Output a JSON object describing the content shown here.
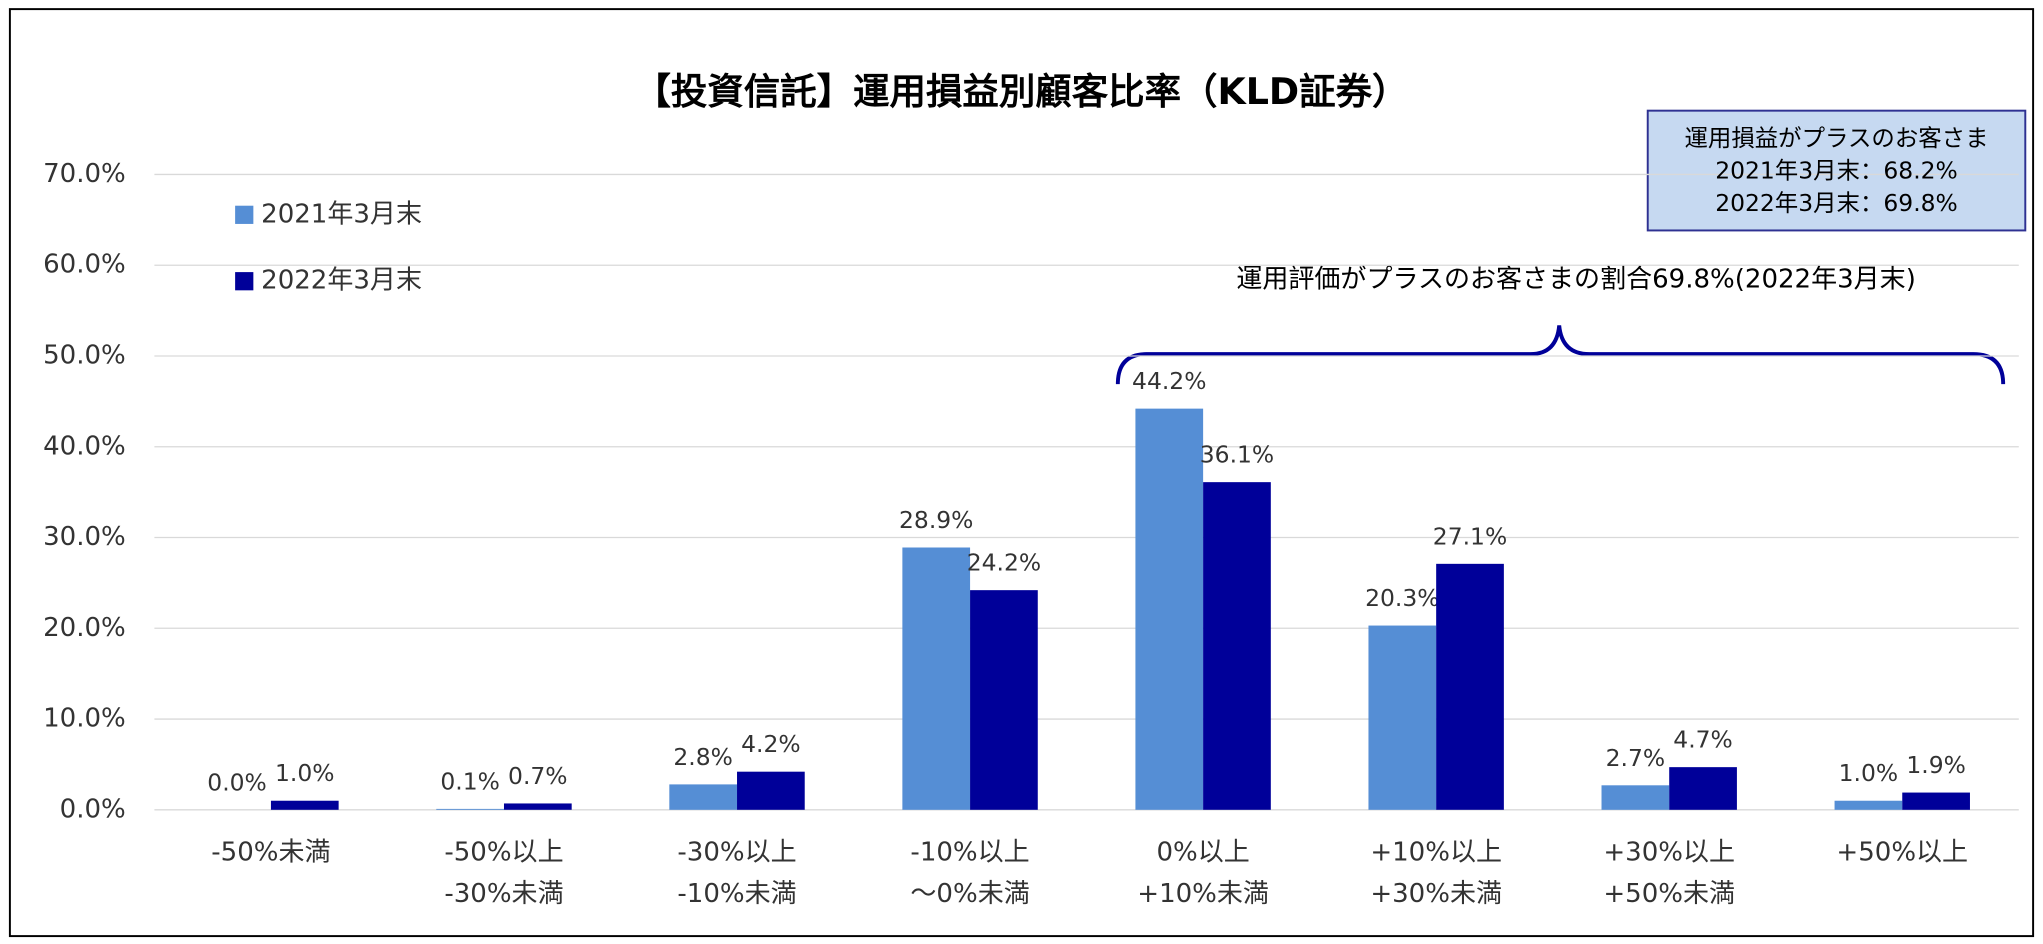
{
  "chart_data": {
    "type": "bar",
    "title": "【投資信託】運用損益別顧客比率（KLD証券）",
    "categories": [
      [
        "-50%未満"
      ],
      [
        "-50%以上",
        "-30%未満"
      ],
      [
        "-30%以上",
        "-10%未満"
      ],
      [
        "-10%以上",
        "～0%未満"
      ],
      [
        "0%以上",
        "+10%未満"
      ],
      [
        "+10%以上",
        "+30%未満"
      ],
      [
        "+30%以上",
        "+50%未満"
      ],
      [
        "+50%以上"
      ]
    ],
    "series": [
      {
        "name": "2021年3月末",
        "color": "#558ed5",
        "values": [
          0.0,
          0.1,
          2.8,
          28.9,
          44.2,
          20.3,
          2.7,
          1.0
        ],
        "value_labels": [
          "0.0%",
          "0.1%",
          "2.8%",
          "28.9%",
          "44.2%",
          "20.3%",
          "2.7%",
          "1.0%"
        ]
      },
      {
        "name": "2022年3月末",
        "color": "#000099",
        "values": [
          1.0,
          0.7,
          4.2,
          24.2,
          36.1,
          27.1,
          4.7,
          1.9
        ],
        "value_labels": [
          "1.0%",
          "0.7%",
          "4.2%",
          "24.2%",
          "36.1%",
          "27.1%",
          "4.7%",
          "1.9%"
        ]
      }
    ],
    "ylim": [
      0,
      70
    ],
    "yticks": [
      {
        "value": 0,
        "label": "0.0%"
      },
      {
        "value": 10,
        "label": "10.0%"
      },
      {
        "value": 20,
        "label": "20.0%"
      },
      {
        "value": 30,
        "label": "30.0%"
      },
      {
        "value": 40,
        "label": "40.0%"
      },
      {
        "value": 50,
        "label": "50.0%"
      },
      {
        "value": 60,
        "label": "60.0%"
      },
      {
        "value": 70,
        "label": "70.0%"
      }
    ],
    "grid": true,
    "legend": "upper left",
    "annotations": {
      "box": [
        "運用損益がプラスのお客さま",
        "2021年3月末：68.2%",
        "2022年3月末：69.8%"
      ],
      "brace": "運用評価がプラスのお客さまの割合69.8%(2022年3月末)"
    }
  }
}
